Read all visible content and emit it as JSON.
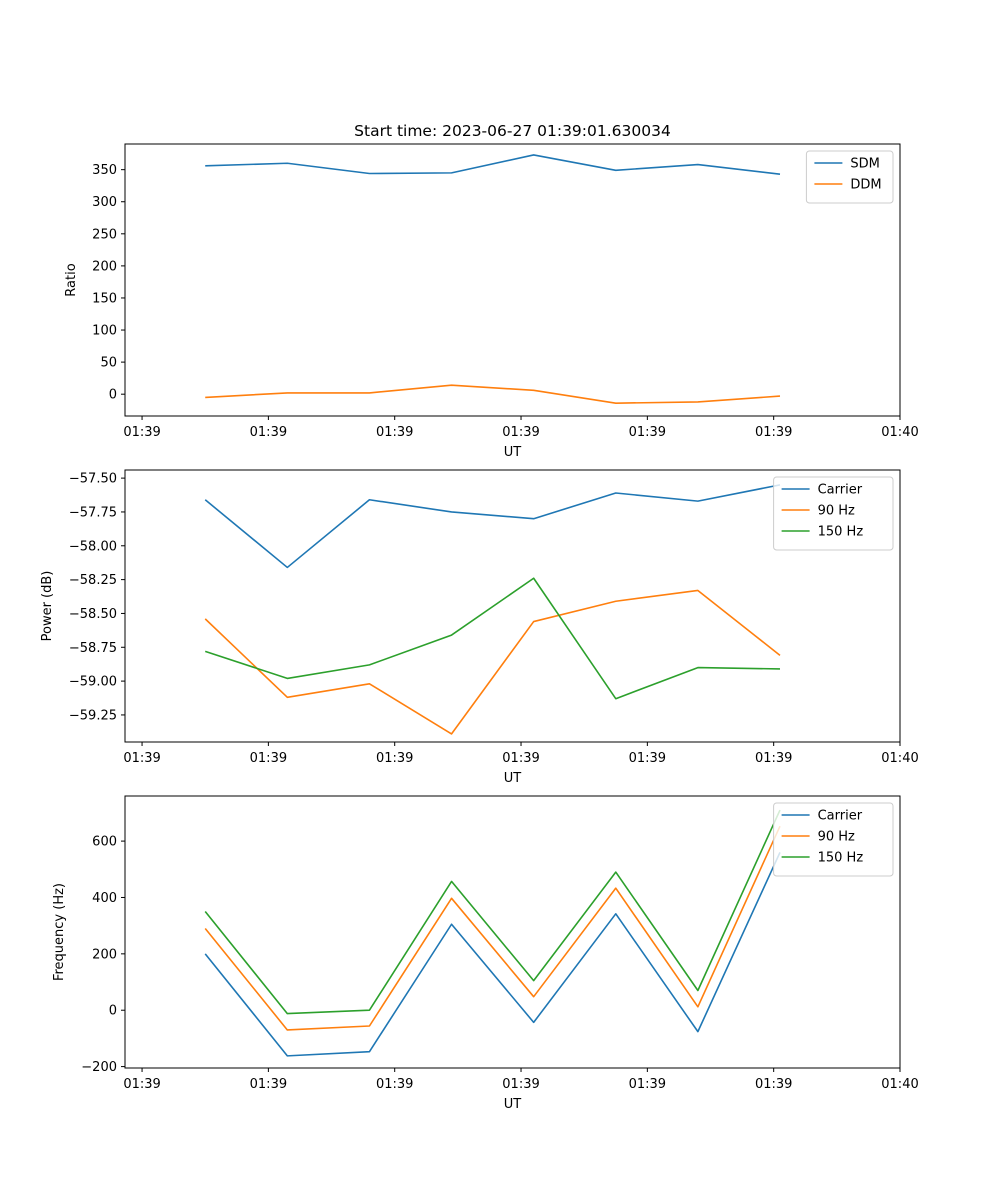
{
  "figure": {
    "title": "Start time: 2023-06-27 01:39:01.630034"
  },
  "chart_data": [
    {
      "type": "line",
      "xlabel": "UT",
      "ylabel": "Ratio",
      "x_tick_labels": [
        "01:39",
        "01:39",
        "01:39",
        "01:39",
        "01:39",
        "01:39",
        "01:40"
      ],
      "x_ticks": [
        0,
        0.2,
        0.4,
        0.6,
        0.8,
        1.0,
        1.2
      ],
      "xlim": [
        -0.027,
        1.2
      ],
      "ylim": [
        -34,
        390
      ],
      "y_ticks": [
        0,
        50,
        100,
        150,
        200,
        250,
        300,
        350
      ],
      "legend_position": "upper right",
      "x": [
        0.1,
        0.23,
        0.36,
        0.49,
        0.62,
        0.75,
        0.88,
        1.01
      ],
      "series": [
        {
          "name": "SDM",
          "color": "#1f77b4",
          "values": [
            356,
            360,
            344,
            345,
            373,
            349,
            358,
            343
          ]
        },
        {
          "name": "DDM",
          "color": "#ff7f0e",
          "values": [
            -5,
            2,
            2,
            14,
            6,
            -14,
            -12,
            -3
          ]
        }
      ]
    },
    {
      "type": "line",
      "xlabel": "UT",
      "ylabel": "Power (dB)",
      "x_tick_labels": [
        "01:39",
        "01:39",
        "01:39",
        "01:39",
        "01:39",
        "01:39",
        "01:40"
      ],
      "x_ticks": [
        0,
        0.2,
        0.4,
        0.6,
        0.8,
        1.0,
        1.2
      ],
      "xlim": [
        -0.027,
        1.2
      ],
      "ylim": [
        -59.45,
        -57.44
      ],
      "y_ticks": [
        -57.5,
        -57.75,
        -58.0,
        -58.25,
        -58.5,
        -58.75,
        -59.0,
        -59.25
      ],
      "y_tick_labels": [
        "−57.50",
        "−57.75",
        "−58.00",
        "−58.25",
        "−58.50",
        "−58.75",
        "−59.00",
        "−59.25"
      ],
      "legend_position": "upper right",
      "x": [
        0.1,
        0.23,
        0.36,
        0.49,
        0.62,
        0.75,
        0.88,
        1.01
      ],
      "series": [
        {
          "name": "Carrier",
          "color": "#1f77b4",
          "values": [
            -57.66,
            -58.16,
            -57.66,
            -57.75,
            -57.8,
            -57.61,
            -57.67,
            -57.55
          ]
        },
        {
          "name": "90 Hz",
          "color": "#ff7f0e",
          "values": [
            -58.54,
            -59.12,
            -59.02,
            -59.39,
            -58.56,
            -58.41,
            -58.33,
            -58.81
          ]
        },
        {
          "name": "150 Hz",
          "color": "#2ca02c",
          "values": [
            -58.78,
            -58.98,
            -58.88,
            -58.66,
            -58.24,
            -59.13,
            -58.9,
            -58.91
          ]
        }
      ]
    },
    {
      "type": "line",
      "xlabel": "UT",
      "ylabel": "Frequency (Hz)",
      "x_tick_labels": [
        "01:39",
        "01:39",
        "01:39",
        "01:39",
        "01:39",
        "01:39",
        "01:40"
      ],
      "x_ticks": [
        0,
        0.2,
        0.4,
        0.6,
        0.8,
        1.0,
        1.2
      ],
      "xlim": [
        -0.027,
        1.2
      ],
      "ylim": [
        -205,
        760
      ],
      "y_ticks": [
        -200,
        0,
        200,
        400,
        600
      ],
      "y_tick_labels": [
        "−200",
        "0",
        "200",
        "400",
        "600"
      ],
      "legend_position": "upper right",
      "x": [
        0.1,
        0.23,
        0.36,
        0.49,
        0.62,
        0.75,
        0.88,
        1.01
      ],
      "series": [
        {
          "name": "Carrier",
          "color": "#1f77b4",
          "values": [
            200,
            -162,
            -147,
            305,
            -43,
            342,
            -76,
            560
          ]
        },
        {
          "name": "90 Hz",
          "color": "#ff7f0e",
          "values": [
            290,
            -70,
            -56,
            397,
            48,
            433,
            12,
            653
          ]
        },
        {
          "name": "150 Hz",
          "color": "#2ca02c",
          "values": [
            350,
            -12,
            0,
            457,
            105,
            490,
            70,
            710
          ]
        }
      ]
    }
  ]
}
